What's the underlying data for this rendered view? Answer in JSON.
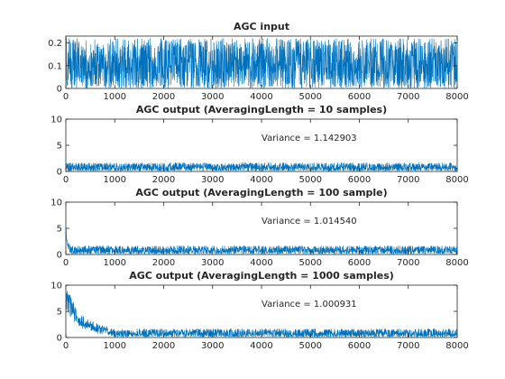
{
  "figure": {
    "background": "#ffffff",
    "line_color": "#0072BD",
    "axis_color": "#262626"
  },
  "chart_data": [
    {
      "type": "line",
      "title": "AGC input",
      "xlim": [
        0,
        8000
      ],
      "ylim": [
        0,
        0.23
      ],
      "x_ticks": [
        0,
        1000,
        2000,
        3000,
        4000,
        5000,
        6000,
        7000,
        8000
      ],
      "y_ticks": [
        0,
        0.1,
        0.2
      ],
      "x_tick_labels": [
        "0",
        "1000",
        "2000",
        "3000",
        "4000",
        "5000",
        "6000",
        "7000",
        "8000"
      ],
      "y_tick_labels": [
        "0",
        "0.1",
        "0.2"
      ],
      "annotation": "",
      "series": [
        {
          "n_samples": 8000,
          "mean": 0.1,
          "min": 0.0,
          "max": 0.22,
          "transient_peak": 0.0,
          "transient_length": 0
        }
      ]
    },
    {
      "type": "line",
      "title": "AGC output (AveragingLength = 10 samples)",
      "xlim": [
        0,
        8000
      ],
      "ylim": [
        0,
        10
      ],
      "x_ticks": [
        0,
        1000,
        2000,
        3000,
        4000,
        5000,
        6000,
        7000,
        8000
      ],
      "y_ticks": [
        0,
        5,
        10
      ],
      "x_tick_labels": [
        "0",
        "1000",
        "2000",
        "3000",
        "4000",
        "5000",
        "6000",
        "7000",
        "8000"
      ],
      "y_tick_labels": [
        "0",
        "5",
        "10"
      ],
      "annotation": "Variance = 1.142903",
      "series": [
        {
          "n_samples": 8000,
          "mean": 0.9,
          "min": 0.0,
          "max": 2.3,
          "transient_peak": 2.6,
          "transient_length": 10
        }
      ]
    },
    {
      "type": "line",
      "title": "AGC output (AveragingLength = 100 sample)",
      "xlim": [
        0,
        8000
      ],
      "ylim": [
        0,
        10
      ],
      "x_ticks": [
        0,
        1000,
        2000,
        3000,
        4000,
        5000,
        6000,
        7000,
        8000
      ],
      "y_ticks": [
        0,
        5,
        10
      ],
      "x_tick_labels": [
        "0",
        "1000",
        "2000",
        "3000",
        "4000",
        "5000",
        "6000",
        "7000",
        "8000"
      ],
      "y_tick_labels": [
        "0",
        "5",
        "10"
      ],
      "annotation": "Variance = 1.014540",
      "series": [
        {
          "n_samples": 8000,
          "mean": 0.9,
          "min": 0.0,
          "max": 2.1,
          "transient_peak": 5.8,
          "transient_length": 100
        }
      ]
    },
    {
      "type": "line",
      "title": "AGC output (AveragingLength = 1000 samples)",
      "xlim": [
        0,
        8000
      ],
      "ylim": [
        0,
        10
      ],
      "x_ticks": [
        0,
        1000,
        2000,
        3000,
        4000,
        5000,
        6000,
        7000,
        8000
      ],
      "y_ticks": [
        0,
        5,
        10
      ],
      "x_tick_labels": [
        "0",
        "1000",
        "2000",
        "3000",
        "4000",
        "5000",
        "6000",
        "7000",
        "8000"
      ],
      "y_tick_labels": [
        "0",
        "5",
        "10"
      ],
      "annotation": "Variance = 1.000931",
      "series": [
        {
          "n_samples": 8000,
          "mean": 0.9,
          "min": 0.0,
          "max": 2.0,
          "transient_peak": 10,
          "transient_length": 900
        }
      ]
    }
  ]
}
